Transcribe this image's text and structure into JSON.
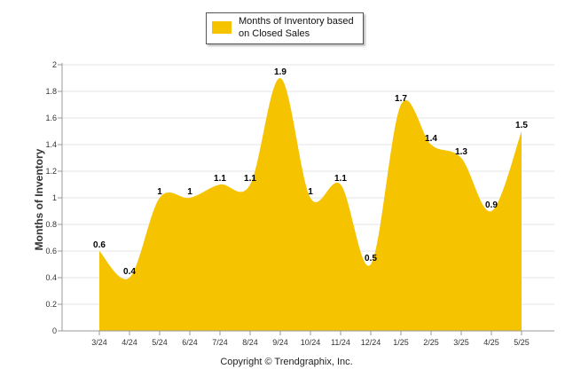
{
  "chart_data": {
    "type": "area",
    "categories": [
      "3/24",
      "4/24",
      "5/24",
      "6/24",
      "7/24",
      "8/24",
      "9/24",
      "10/24",
      "11/24",
      "12/24",
      "1/25",
      "2/25",
      "3/25",
      "4/25",
      "5/25"
    ],
    "series": [
      {
        "name": "Months of Inventory based on Closed Sales",
        "values": [
          0.6,
          0.4,
          1,
          1,
          1.1,
          1.1,
          1.9,
          1,
          1.1,
          0.5,
          1.7,
          1.4,
          1.3,
          0.9,
          1.5
        ],
        "labels": [
          "0.6",
          "0.4",
          "1",
          "1",
          "1.1",
          "1.1",
          "1.9",
          "1",
          "1.1",
          "0.5",
          "1.7",
          "1.4",
          "1.3",
          "0.9",
          "1.5"
        ],
        "color": "#f5c300"
      }
    ],
    "ylabel": "Months of Inventory",
    "ylim": [
      0,
      2
    ],
    "yticks": [
      "0",
      "0.2",
      "0.4",
      "0.6",
      "0.8",
      "1",
      "1.2",
      "1.4",
      "1.6",
      "1.8",
      "2"
    ],
    "grid": true,
    "legend": "top-center"
  },
  "footer": "Copyright © Trendgraphix, Inc."
}
